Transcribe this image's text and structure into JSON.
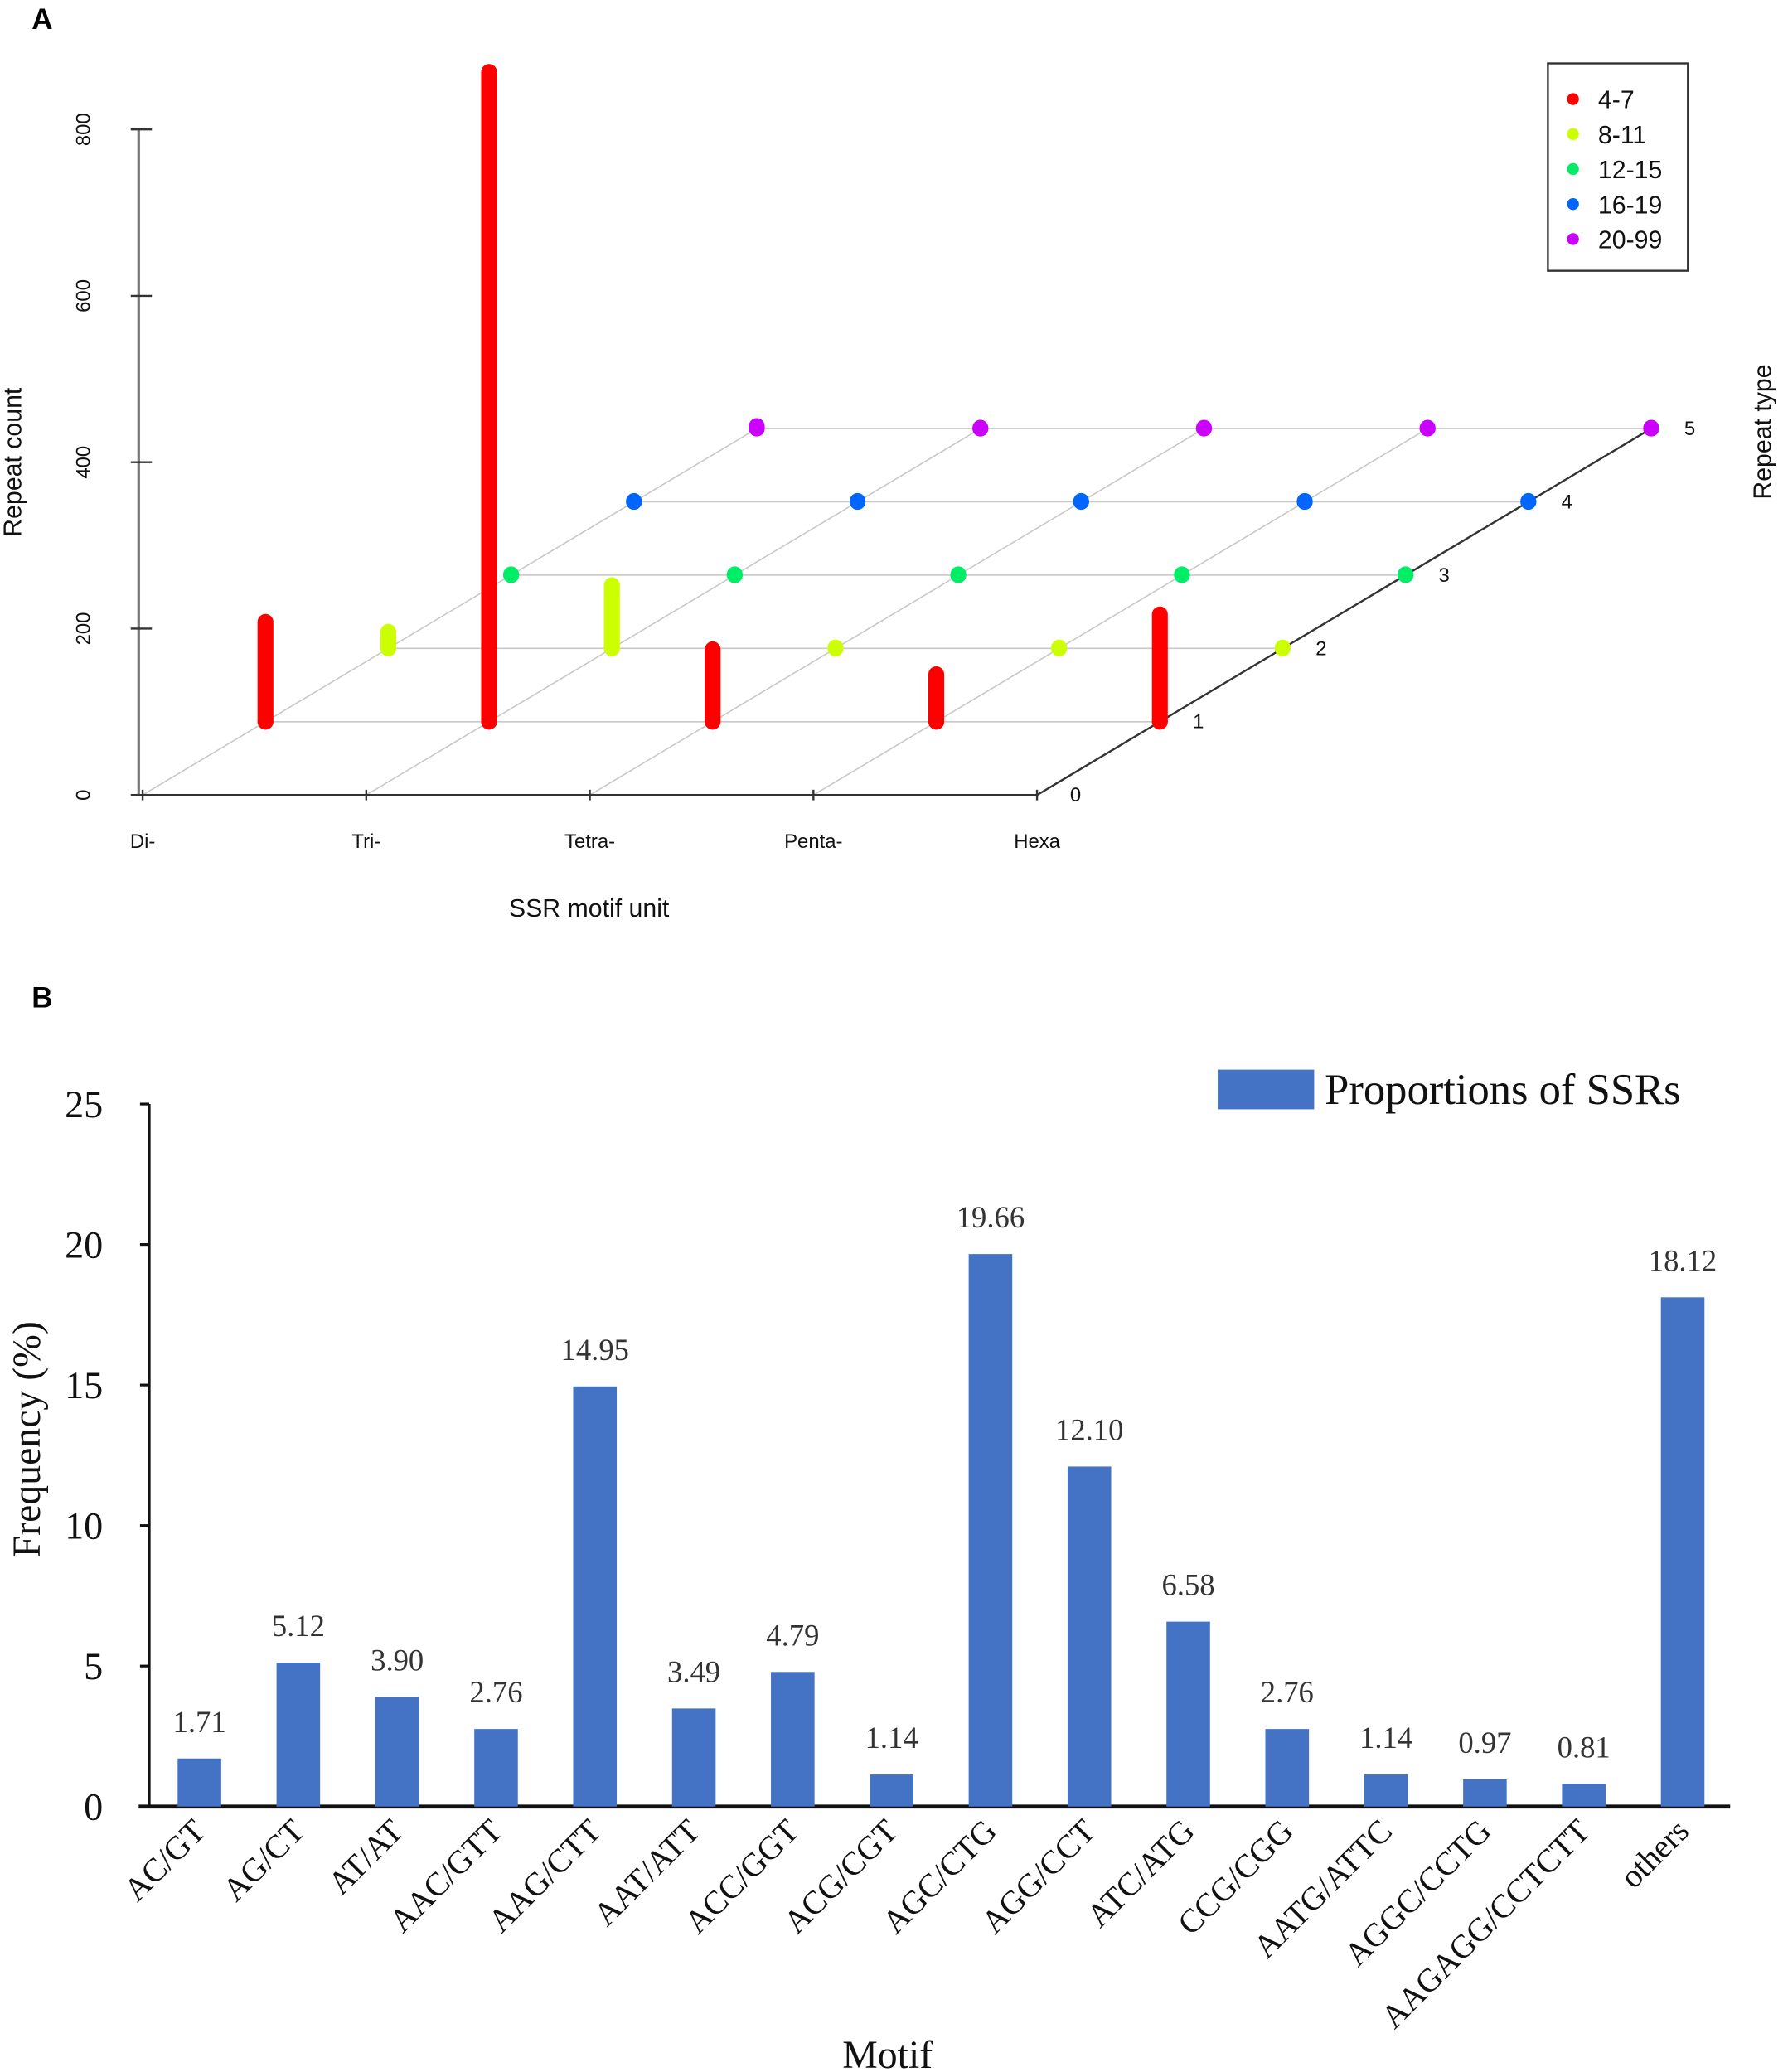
{
  "chart_data": [
    {
      "panel_label": "A",
      "type": "bar3d",
      "xlabel": "SSR motif unit",
      "ylabel": "Repeat count",
      "zlabel": "Repeat type",
      "categories": [
        "Di-",
        "Tri-",
        "Tetra-",
        "Penta-",
        "Hexa"
      ],
      "y_ticks": [
        "0",
        "200",
        "400",
        "600",
        "800"
      ],
      "z_ticks": [
        "0",
        "1",
        "2",
        "3",
        "4",
        "5"
      ],
      "ylim": [
        0,
        800
      ],
      "grid": true,
      "legend_position": "top-right",
      "series": [
        {
          "name": "4-7",
          "color": "#ff0000",
          "values": [
            120,
            781,
            87,
            57,
            129
          ]
        },
        {
          "name": "8-11",
          "color": "#ccff00",
          "values": [
            20,
            76,
            1,
            1,
            1
          ]
        },
        {
          "name": "12-15",
          "color": "#00ee66",
          "values": [
            1,
            1,
            1,
            1,
            1
          ]
        },
        {
          "name": "16-19",
          "color": "#0066ff",
          "values": [
            1,
            1,
            1,
            1,
            1
          ]
        },
        {
          "name": "20-99",
          "color": "#cc00ff",
          "values": [
            3,
            1,
            1,
            1,
            1
          ]
        }
      ]
    },
    {
      "panel_label": "B",
      "type": "bar",
      "xlabel": "Motif",
      "ylabel": "Frequency (%)",
      "ylim": [
        0,
        25
      ],
      "y_ticks": [
        "0",
        "5",
        "10",
        "15",
        "20",
        "25"
      ],
      "grid": false,
      "legend_position": "top-right",
      "series_name": "Proportions of SSRs",
      "color": "#4472c4",
      "categories": [
        "AC/GT",
        "AG/CT",
        "AT/AT",
        "AAC/GTT",
        "AAG/CTT",
        "AAT/ATT",
        "ACC/GGT",
        "ACG/CGT",
        "AGC/CTG",
        "AGG/CCT",
        "ATC/ATG",
        "CCG/CGG",
        "AATG/ATTC",
        "AGGC/CCTG",
        "AAGAGG/CCTCTT",
        "others"
      ],
      "values": [
        1.71,
        5.12,
        3.9,
        2.76,
        14.95,
        3.49,
        4.79,
        1.14,
        19.66,
        12.1,
        6.58,
        2.76,
        1.14,
        0.97,
        0.81,
        18.12
      ],
      "value_labels": [
        "1.71",
        "5.12",
        "3.90",
        "2.76",
        "14.95",
        "3.49",
        "4.79",
        "1.14",
        "19.66",
        "12.10",
        "6.58",
        "2.76",
        "1.14",
        "0.97",
        "0.81",
        "18.12"
      ]
    }
  ]
}
